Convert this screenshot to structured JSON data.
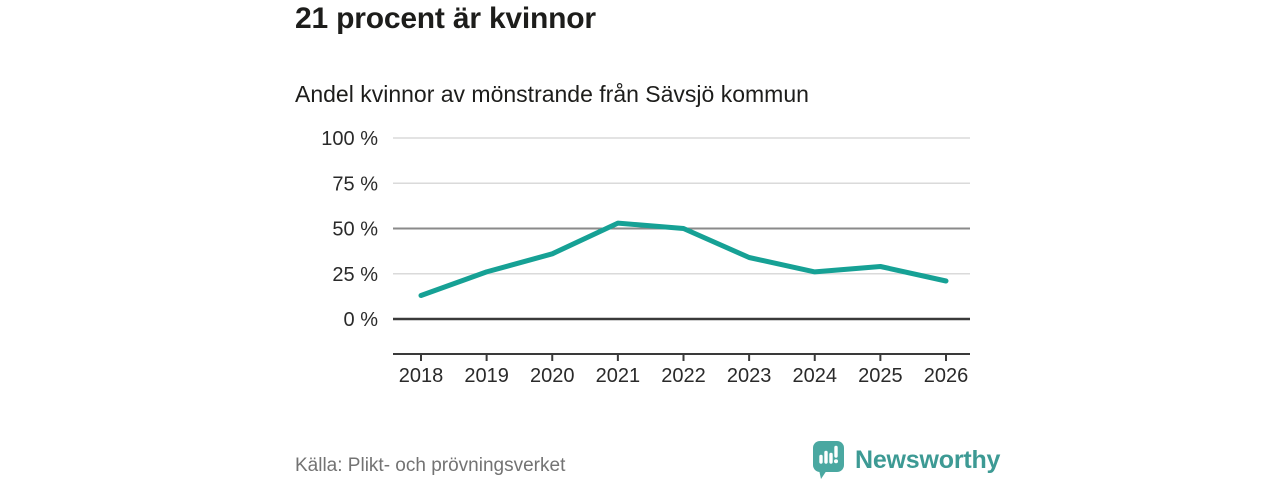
{
  "header": {
    "title": "21 procent är kvinnor",
    "subtitle": "Andel kvinnor av mönstrande från Sävsjö kommun"
  },
  "footer": {
    "source": "Källa: Plikt- och prövningsverket",
    "brand": "Newsworthy"
  },
  "colors": {
    "line": "#16a195",
    "grid_light": "#dadada",
    "grid_mid": "#8a8a8a",
    "axis_dark": "#3a3a3a",
    "tick_text": "#2a2a2a",
    "brand_teal": "#4aa8a1",
    "brand_text": "#3d9a94"
  },
  "chart_data": {
    "type": "line",
    "title": "21 procent är kvinnor",
    "subtitle": "Andel kvinnor av mönstrande från Sävsjö kommun",
    "categories": [
      "2018",
      "2019",
      "2020",
      "2021",
      "2022",
      "2023",
      "2024",
      "2025",
      "2026"
    ],
    "values": [
      13,
      26,
      36,
      53,
      50,
      34,
      26,
      29,
      21
    ],
    "unit": "%",
    "ylim": [
      0,
      100
    ],
    "yticks": [
      0,
      25,
      50,
      75,
      100
    ],
    "ytick_labels": [
      "0 %",
      "25 %",
      "50 %",
      "75 %",
      "100 %"
    ],
    "grid": "horizontal",
    "legend": "none",
    "emphasized_gridline": 50,
    "source": "Källa: Plikt- och prövningsverket"
  }
}
